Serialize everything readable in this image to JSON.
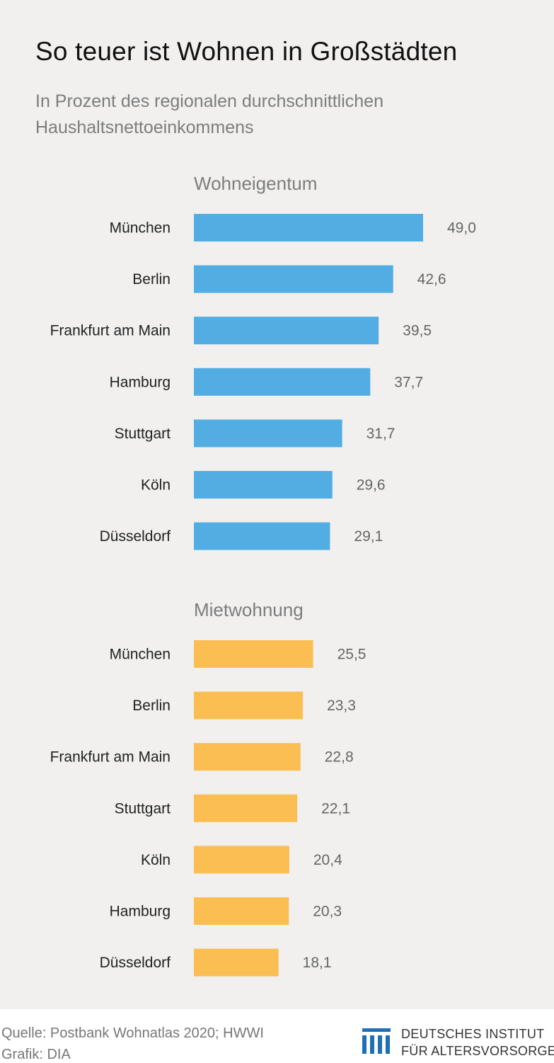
{
  "title": "So teuer ist Wohnen in Großstädten",
  "subtitle": "In Prozent des regionalen durchschnittlichen Haushaltsnettoeinkommens",
  "colors": {
    "ownership": "#52ade3",
    "rent": "#fbbe52"
  },
  "chart_data": [
    {
      "type": "bar",
      "title": "Wohneigentum",
      "orientation": "horizontal",
      "color": "#52ade3",
      "categories": [
        "München",
        "Berlin",
        "Frankfurt am Main",
        "Hamburg",
        "Stuttgart",
        "Köln",
        "Düsseldorf"
      ],
      "values": [
        49.0,
        42.6,
        39.5,
        37.7,
        31.7,
        29.6,
        29.1
      ],
      "value_labels": [
        "49,0",
        "42,6",
        "39,5",
        "37,7",
        "31,7",
        "29,6",
        "29,1"
      ],
      "xlim": [
        0,
        49
      ]
    },
    {
      "type": "bar",
      "title": "Mietwohnung",
      "orientation": "horizontal",
      "color": "#fbbe52",
      "categories": [
        "München",
        "Berlin",
        "Frankfurt am Main",
        "Stuttgart",
        "Köln",
        "Hamburg",
        "Düsseldorf"
      ],
      "values": [
        25.5,
        23.3,
        22.8,
        22.1,
        20.4,
        20.3,
        18.1
      ],
      "value_labels": [
        "25,5",
        "23,3",
        "22,8",
        "22,1",
        "20,4",
        "20,3",
        "18,1"
      ],
      "xlim": [
        0,
        49
      ]
    }
  ],
  "footer": {
    "source": "Quelle: Postbank Wohnatlas 2020; HWWI",
    "credit": "Grafik: DIA",
    "brand_line1": "DEUTSCHES INSTITUT",
    "brand_line2": "FÜR ALTERSVORSORGE",
    "brand_icon": "dia-logo-icon"
  }
}
